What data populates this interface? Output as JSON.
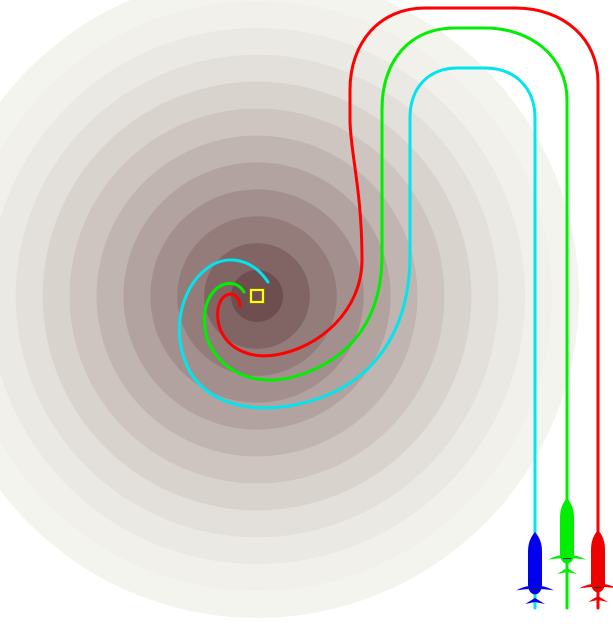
{
  "colors": {
    "background": "#ffffff",
    "field_light": "#f4f4ee",
    "field_dark": "#6e4e4e",
    "target_marker": "#ffff00",
    "path_red": "#ff0000",
    "path_green": "#00ee00",
    "path_cyan": "#00e5ee",
    "aircraft_blue": "#0000ee",
    "aircraft_green": "#00ee00",
    "aircraft_red": "#ee0000"
  },
  "field": {
    "name": "concentric-threat-field",
    "ring_count": 12
  },
  "target": {
    "icon": "target-square-icon"
  },
  "paths": [
    {
      "id": "red",
      "color_key": "path_red"
    },
    {
      "id": "green",
      "color_key": "path_green"
    },
    {
      "id": "cyan",
      "color_key": "path_cyan"
    }
  ],
  "aircraft": [
    {
      "id": "blue",
      "icon": "aircraft-icon",
      "color_key": "aircraft_blue"
    },
    {
      "id": "green",
      "icon": "aircraft-icon",
      "color_key": "aircraft_green"
    },
    {
      "id": "red",
      "icon": "aircraft-icon",
      "color_key": "aircraft_red"
    }
  ]
}
